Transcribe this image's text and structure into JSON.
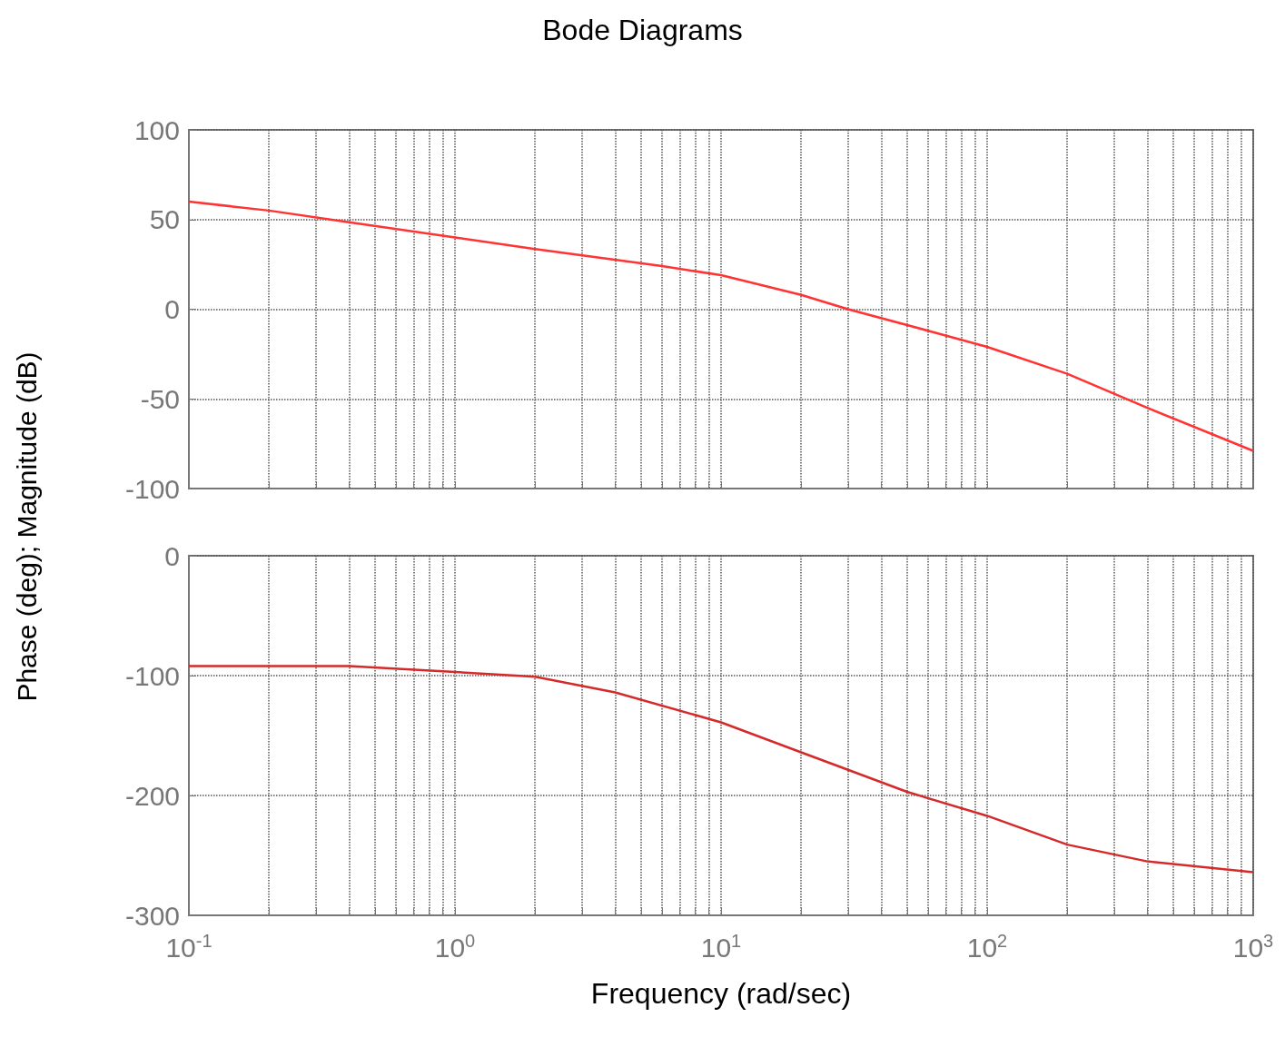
{
  "chart_data": [
    {
      "type": "line",
      "title": "Bode Diagrams",
      "ylabel": "Phase (deg); Magnitude (dB)",
      "log": "x",
      "grid": true,
      "tick_labels": "y",
      "marker": "none",
      "line_style": "solid",
      "xlim": [
        0.1,
        1000
      ],
      "xticks": [
        {
          "value": 0.1,
          "label": null
        },
        {
          "value": 1,
          "label": null
        },
        {
          "value": 10,
          "label": null
        },
        {
          "value": 100,
          "label": null
        },
        {
          "value": 1000,
          "label": null
        }
      ],
      "ylim": [
        -100,
        100
      ],
      "yticks": [
        -100,
        -50,
        0,
        50,
        100
      ],
      "series": [
        {
          "color": "#ff3333",
          "x": [
            0.1,
            0.2,
            0.4,
            1,
            2,
            6,
            10,
            20,
            30,
            60,
            100,
            200,
            400,
            1000
          ],
          "values": [
            60,
            55,
            48.5,
            40,
            33.5,
            24,
            19,
            8,
            0,
            -12,
            -21,
            -36,
            -55,
            -79
          ]
        }
      ]
    },
    {
      "type": "line",
      "xlabel": "Frequency (rad/sec)",
      "log": "x",
      "grid": true,
      "marker": "none",
      "line_style": "solid",
      "xlim": [
        0.1,
        1000
      ],
      "xticks": [
        {
          "value": 0.1,
          "label": "10$^{-1}$"
        },
        {
          "value": 1,
          "label": "10$^{0}$"
        },
        {
          "value": 10,
          "label": "10$^{1}$"
        },
        {
          "value": 100,
          "label": "10$^{2}$"
        },
        {
          "value": 1000,
          "label": "10$^{3}$"
        }
      ],
      "ylim": [
        -300,
        0
      ],
      "yticks": [
        -300,
        -200,
        -100,
        0
      ],
      "series": [
        {
          "color": "#d42a2a",
          "x": [
            0.1,
            0.4,
            1,
            2,
            4,
            10,
            20,
            50,
            100,
            200,
            400,
            1000
          ],
          "values": [
            -92,
            -92,
            -97,
            -101,
            -114,
            -139,
            -164,
            -197,
            -217,
            -241,
            -255,
            -264
          ]
        }
      ]
    }
  ]
}
